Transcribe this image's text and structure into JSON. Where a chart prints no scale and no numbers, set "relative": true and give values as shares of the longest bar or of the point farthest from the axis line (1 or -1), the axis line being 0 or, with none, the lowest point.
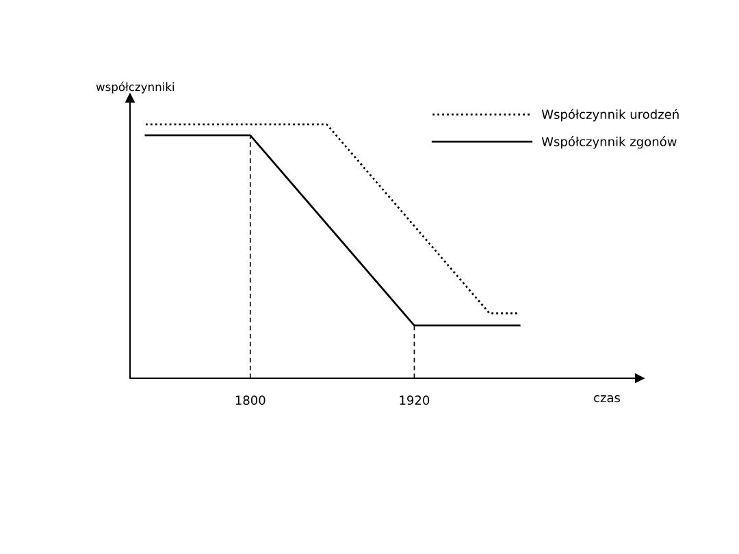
{
  "chart_data": {
    "type": "line",
    "relative": true,
    "xlabel": "czas",
    "ylabel": "współczynniki",
    "xlim": [
      1712,
      2085
    ],
    "xticks": [
      1800,
      1920
    ],
    "tick_labels": "x",
    "legend": "top right",
    "grid": false,
    "marker": "none",
    "series": [
      {
        "name": "Współczynnik urodzeń",
        "color": "#000000",
        "line_style": "dotted",
        "x": [
          1723.5,
          1856,
          1975,
          1996
        ],
        "values": [
          1,
          1,
          0.256,
          0.256
        ]
      },
      {
        "name": "Współczynnik zgonów",
        "color": "#000000",
        "line_style": "solid",
        "x": [
          1723.5,
          1800,
          1920,
          1997
        ],
        "values": [
          0.957,
          0.957,
          0.208,
          0.208
        ]
      }
    ],
    "ref_lines": [
      {
        "axis": "x",
        "value": 1800,
        "color": "#000000",
        "line_style": "dashed"
      },
      {
        "axis": "x",
        "value": 1920,
        "color": "#000000",
        "line_style": "dashed"
      }
    ]
  }
}
